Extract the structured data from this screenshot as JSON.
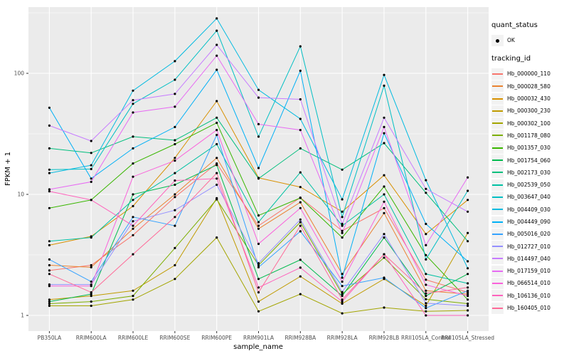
{
  "chart_data": {
    "type": "line",
    "xlabel": "sample_name",
    "ylabel": "FPKM + 1",
    "y_scale": "log10",
    "y_ticks": [
      1,
      10,
      100
    ],
    "y_minor_ticks": [
      3.162,
      31.62,
      316.2
    ],
    "ylim_px_note": "log decade = 170px, value 1 at y=443, panel 10..465",
    "categories": [
      "PB350LA",
      "RRIM600LA",
      "RRIM600LE",
      "RRIM600SE",
      "RRIM600PE",
      "RRIM901LA",
      "RRIM928BA",
      "RRIM928LA",
      "RRIM928LB",
      "RRII105LA_Control",
      "RRII105LA_Stressed"
    ],
    "legend": {
      "quant_status_title": "quant_status",
      "quant_status_items": [
        {
          "label": "OK",
          "marker": "black-point"
        }
      ],
      "tracking_title": "tracking_id"
    },
    "colors": {
      "panel_bg": "#EBEBEB",
      "grid": "#FFFFFF",
      "tick_text": "#4D4D4D",
      "axis_tick": "#333333",
      "point": "#000000",
      "legend_key_bg": "#F2F2F2"
    },
    "series": [
      {
        "name": "Hb_000000_110",
        "color": "#F8766D",
        "values": [
          2.35,
          2.6,
          4.6,
          9.5,
          18,
          5.5,
          9.4,
          5.0,
          7.7,
          1.97,
          1.55
        ]
      },
      {
        "name": "Hb_000028_580",
        "color": "#EA8331",
        "values": [
          2.6,
          2.5,
          5.2,
          10,
          20,
          5.2,
          8.6,
          2.2,
          7.0,
          1.6,
          1.5
        ]
      },
      {
        "name": "Hb_000032_430",
        "color": "#D89000",
        "values": [
          3.8,
          4.5,
          8.0,
          20,
          59,
          13.7,
          11.5,
          7.2,
          14.4,
          4.7,
          9.0
        ]
      },
      {
        "name": "Hb_000300_230",
        "color": "#C09B00",
        "values": [
          1.35,
          1.45,
          1.6,
          2.6,
          9.3,
          1.3,
          2.1,
          1.25,
          2.0,
          1.2,
          4.8
        ]
      },
      {
        "name": "Hb_000302_100",
        "color": "#A3A500",
        "values": [
          1.2,
          1.2,
          1.35,
          2.0,
          4.4,
          1.08,
          1.5,
          1.04,
          1.16,
          1.08,
          1.1
        ]
      },
      {
        "name": "Hb_001178_080",
        "color": "#7CAE00",
        "values": [
          1.25,
          1.3,
          1.45,
          3.6,
          9.1,
          2.6,
          5.9,
          1.5,
          3.0,
          1.36,
          1.25
        ]
      },
      {
        "name": "Hb_001357_030",
        "color": "#39B600",
        "values": [
          7.7,
          9.0,
          18,
          26,
          39,
          6.7,
          9.35,
          4.4,
          11.6,
          3.15,
          1.35
        ]
      },
      {
        "name": "Hb_001754_060",
        "color": "#00BB4E",
        "values": [
          1.3,
          1.5,
          10,
          12,
          17.5,
          2.0,
          2.88,
          1.45,
          4.4,
          1.45,
          2.2
        ]
      },
      {
        "name": "Hb_002173_030",
        "color": "#00BF7D",
        "values": [
          24,
          22,
          30,
          28,
          43,
          13.5,
          24,
          16,
          26.5,
          10.3,
          4.1
        ]
      },
      {
        "name": "Hb_002539_050",
        "color": "#00C1A3",
        "values": [
          4.1,
          4.4,
          9.0,
          15,
          26,
          5.9,
          15.2,
          5.5,
          10,
          2.2,
          1.84
        ]
      },
      {
        "name": "Hb_003647_040",
        "color": "#00BFC4",
        "values": [
          16,
          16.2,
          56,
          88.5,
          225,
          30,
          167,
          6.5,
          79,
          2.9,
          10.7
        ]
      },
      {
        "name": "Hb_004409_030",
        "color": "#00BAE0",
        "values": [
          15,
          17.4,
          72,
          126,
          284,
          73,
          42,
          9.1,
          97,
          13.1,
          2.45
        ]
      },
      {
        "name": "Hb_004449_090",
        "color": "#00B0F6",
        "values": [
          52,
          13.5,
          24,
          36,
          107,
          16.5,
          105,
          2.05,
          32,
          5.7,
          2.8
        ]
      },
      {
        "name": "Hb_005016_020",
        "color": "#35A2FF",
        "values": [
          2.9,
          1.9,
          6.5,
          5.5,
          31,
          2.5,
          4.95,
          1.75,
          2.05,
          1.15,
          1.6
        ]
      },
      {
        "name": "Hb_012727_010",
        "color": "#9590FF",
        "values": [
          1.8,
          1.8,
          6.0,
          7.4,
          12,
          2.7,
          6.2,
          1.56,
          4.7,
          1.26,
          1.2
        ]
      },
      {
        "name": "Hb_014497_040",
        "color": "#C77CFF",
        "values": [
          37,
          27.6,
          60,
          67.6,
          172,
          63,
          61,
          5.7,
          43,
          11.1,
          7.2
        ]
      },
      {
        "name": "Hb_017159_010",
        "color": "#E76BF3",
        "values": [
          11,
          12.7,
          47.5,
          53,
          140,
          38,
          34,
          4.8,
          36,
          3.8,
          13.8
        ]
      },
      {
        "name": "Hb_066514_010",
        "color": "#FA62DB",
        "values": [
          1.75,
          1.75,
          14,
          19,
          34,
          3.9,
          7.7,
          1.9,
          8.7,
          1.79,
          1.45
        ]
      },
      {
        "name": "Hb_106136_010",
        "color": "#FF62BC",
        "values": [
          10.6,
          9.0,
          5.5,
          13,
          13.5,
          1.7,
          2.48,
          1.3,
          3.2,
          1.0,
          1.0
        ]
      },
      {
        "name": "Hb_160405_010",
        "color": "#FF6A98",
        "values": [
          2.2,
          1.55,
          3.2,
          6.5,
          15,
          1.55,
          5.5,
          1.35,
          3.2,
          1.52,
          1.7
        ]
      }
    ]
  }
}
